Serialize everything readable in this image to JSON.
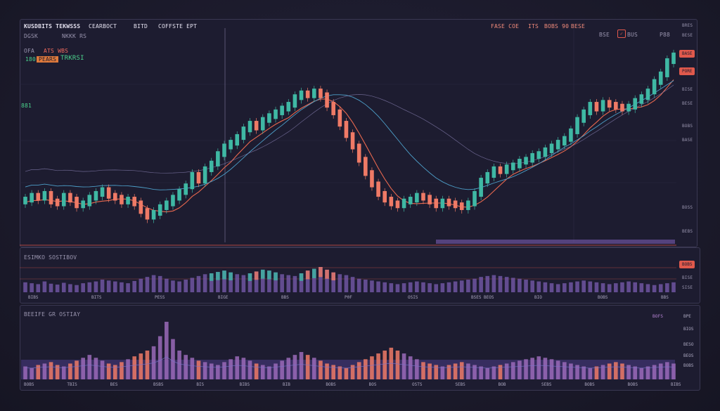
{
  "header": {
    "symbol": "KUSDBITS",
    "symbol_sub": "TEKWSSS",
    "chart_type": "CEARBOCT",
    "interval": "BITD",
    "mode": "COFFSTE EPT",
    "info_left": "DGSK",
    "info_left2": "NKKK RS",
    "ohlc_a": "OFA",
    "ohlc_b": "ATS WBS",
    "ohlc_c": "180",
    "ohlc_d": "PEARS",
    "ohlc_e": "TRKRSI",
    "left_marker": "881",
    "right_a": "FASE COE",
    "right_b": "ITS",
    "right_c": "BOBS 90",
    "right_d": "BESE",
    "tools_a": "BSE",
    "tools_b": "BUS",
    "tools_c": "P88"
  },
  "price_scale": [
    "BRES",
    "BESE",
    "BISE",
    "BESE",
    "BOBS",
    "BASE",
    "BOSS",
    "BEBS"
  ],
  "price_tags": [
    "BASE",
    "PORE"
  ],
  "panel1": {
    "title": "ESIMKO SOSTIBOV",
    "tag": "BOBS",
    "scale": [
      "BISE",
      "SISE"
    ],
    "xticks": [
      "BIBS",
      "BITS",
      "PESS",
      "BIGE",
      "BBS",
      "P0F",
      "OSIS",
      "BSES BEOS",
      "BIO",
      "BOBS",
      "BBS"
    ]
  },
  "panel2": {
    "title": "BEEIFE GR OSTIAY",
    "tag": "BOFS",
    "scale": [
      "BPE",
      "BIOS",
      "BESO",
      "BEOS",
      "BOBS"
    ],
    "xticks": [
      "BOBS",
      "TBIS",
      "BES",
      "BSBS",
      "BIS",
      "BIBS",
      "BIB",
      "BOBS",
      "BOS",
      "OSTS",
      "SEBS",
      "BOB",
      "SEBS",
      "BOBS",
      "BOBS",
      "BIBS"
    ]
  },
  "colors": {
    "up": "#3fb8a4",
    "down": "#ef7a66",
    "volume": "#7a5cb0",
    "ma1": "#e8684f",
    "ma2": "#4d9fc9",
    "ma3": "#8d85b8"
  },
  "chart_data": {
    "type": "candlestick",
    "series": [
      {
        "name": "",
        "close": [
          42,
          44,
          43,
          45,
          41,
          40,
          44,
          42,
          39,
          40,
          43,
          45,
          47,
          44,
          43,
          41,
          42,
          40,
          36,
          33,
          35,
          38,
          40,
          43,
          46,
          49,
          55,
          52,
          58,
          61,
          66,
          70,
          72,
          75,
          79,
          82,
          80,
          84,
          86,
          88,
          90,
          92,
          96,
          98,
          97,
          99,
          97,
          92,
          88,
          82,
          76,
          70,
          63,
          56,
          50,
          45,
          42,
          40,
          39,
          41,
          42,
          44,
          43,
          41,
          39,
          41,
          40,
          39,
          38,
          40,
          45,
          52,
          55,
          58,
          57,
          59,
          60,
          62,
          63,
          65,
          66,
          68,
          70,
          72,
          74,
          78,
          84,
          88,
          92,
          90,
          93,
          92,
          91,
          90,
          91,
          94,
          96,
          99,
          104,
          108,
          115,
          118
        ]
      }
    ],
    "volume_panel1": [
      22,
      20,
      18,
      24,
      19,
      17,
      21,
      18,
      16,
      20,
      22,
      24,
      28,
      26,
      24,
      22,
      20,
      25,
      30,
      34,
      38,
      36,
      30,
      26,
      24,
      28,
      32,
      36,
      40,
      42,
      45,
      48,
      44,
      40,
      38,
      42,
      46,
      50,
      48,
      44,
      40,
      38,
      36,
      42,
      48,
      52,
      56,
      50,
      44,
      40,
      38,
      34,
      30,
      28,
      26,
      24,
      22,
      20,
      18,
      20,
      22,
      24,
      22,
      20,
      18,
      20,
      22,
      24,
      26,
      28,
      30,
      34,
      36,
      38,
      36,
      34,
      32,
      30,
      28,
      26,
      24,
      22,
      20,
      18,
      20,
      22,
      24,
      26,
      24,
      22,
      20,
      18,
      20,
      22,
      24,
      22,
      20,
      18,
      16,
      18,
      20,
      22
    ],
    "volume_panel2": [
      18,
      16,
      20,
      22,
      24,
      20,
      18,
      22,
      26,
      30,
      34,
      30,
      26,
      22,
      20,
      24,
      28,
      32,
      36,
      40,
      46,
      60,
      80,
      56,
      40,
      34,
      30,
      26,
      24,
      22,
      20,
      24,
      28,
      32,
      30,
      26,
      22,
      20,
      18,
      22,
      26,
      30,
      34,
      38,
      34,
      30,
      26,
      22,
      20,
      18,
      16,
      20,
      24,
      28,
      32,
      36,
      40,
      44,
      40,
      36,
      32,
      28,
      24,
      22,
      20,
      18,
      20,
      22,
      24,
      22,
      20,
      18,
      16,
      18,
      20,
      22,
      24,
      26,
      28,
      30,
      32,
      30,
      28,
      26,
      24,
      22,
      20,
      18,
      16,
      18,
      20,
      22,
      24,
      22,
      20,
      18,
      16,
      18,
      20,
      22,
      24,
      22
    ]
  }
}
